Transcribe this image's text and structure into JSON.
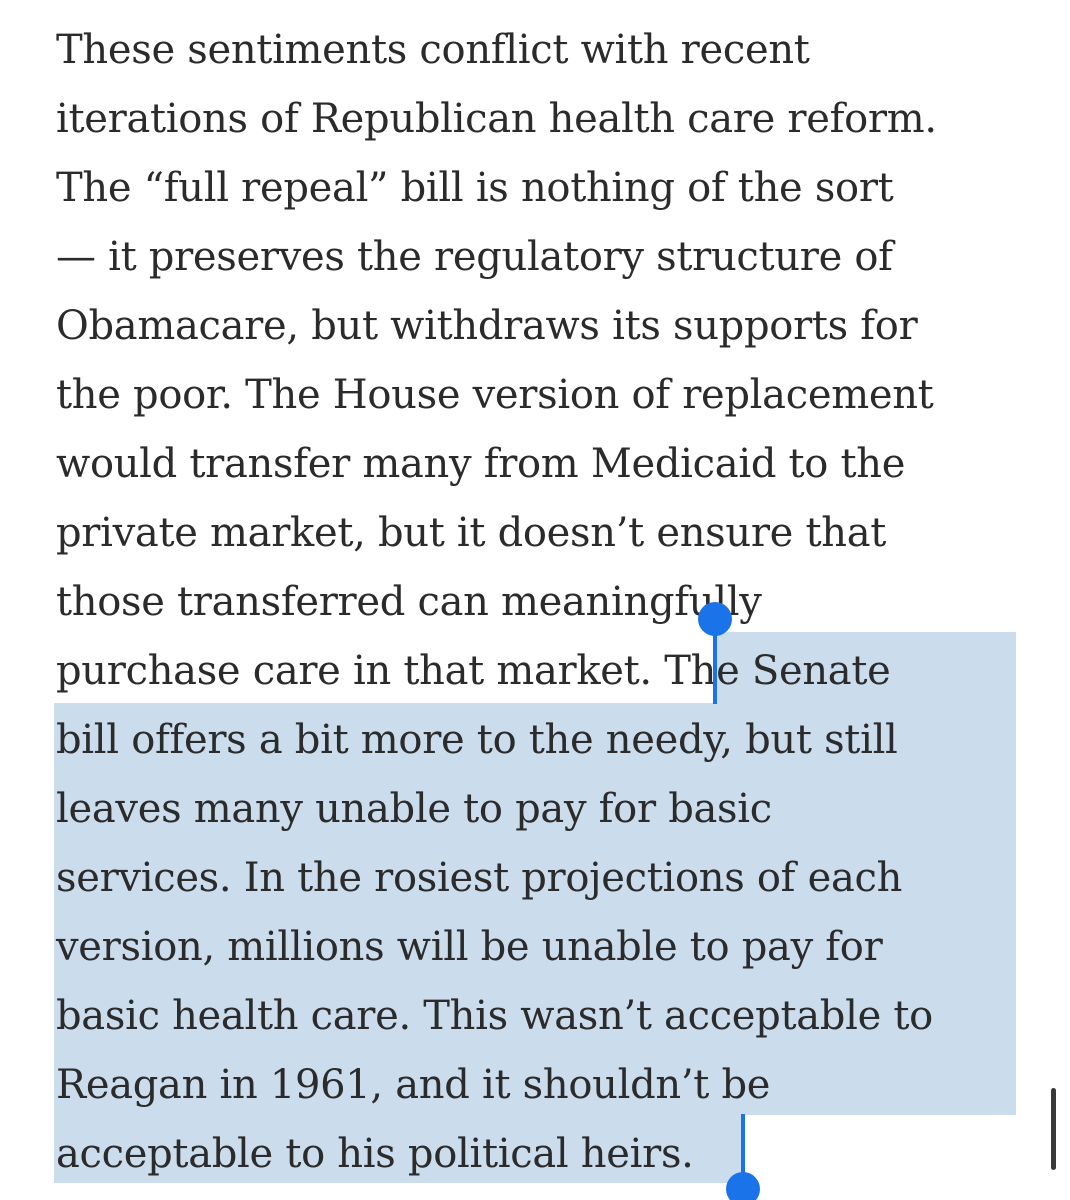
{
  "article": {
    "lines_before": [
      "These sentiments conflict with recent",
      "iterations of Republican health care reform.",
      "The “full repeal” bill is nothing of the sort",
      "— it preserves the regulatory structure of",
      "Obamacare, but withdraws its supports for",
      "the poor. The House version of replacement",
      "would transfer many from Medicaid to the",
      "private market, but it doesn’t ensure that",
      "those transferred can meaningfully"
    ],
    "mixed_line_unselected": "purchase care in that market. ",
    "mixed_line_selected": "The Senate",
    "lines_selected": [
      "bill offers a bit more to the needy, but still",
      "leaves many unable to pay for basic",
      "services. In the rosiest projections of each",
      "version, millions will be unable to pay for",
      "basic health care. This wasn’t acceptable to",
      "Reagan in 1961, and it shouldn’t be",
      "acceptable to his political heirs."
    ]
  },
  "colors": {
    "text": "#2b2b2b",
    "selection": "#cbdcec",
    "handle": "#1a73e8"
  }
}
